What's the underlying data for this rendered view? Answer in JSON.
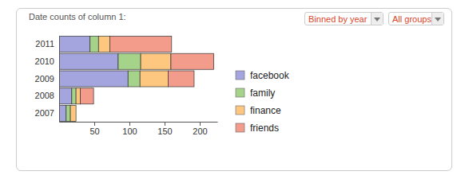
{
  "controls": [
    "Binned by year",
    "All groups"
  ],
  "chart_data": {
    "type": "bar",
    "title": "Date counts of column 1:",
    "orientation": "horizontal",
    "stacked": true,
    "categories": [
      "2011",
      "2010",
      "2009",
      "2008",
      "2007"
    ],
    "series": [
      {
        "name": "facebook",
        "color": "#a4a4de",
        "values": [
          44,
          84,
          98,
          18,
          10
        ]
      },
      {
        "name": "family",
        "color": "#a6d38a",
        "values": [
          12,
          32,
          17,
          6,
          6
        ]
      },
      {
        "name": "finance",
        "color": "#fdc77f",
        "values": [
          16,
          43,
          40,
          6,
          8
        ]
      },
      {
        "name": "friends",
        "color": "#f39c8c",
        "values": [
          88,
          61,
          37,
          19,
          0
        ]
      }
    ],
    "xlim": [
      0,
      225
    ],
    "xticks": [
      50,
      100,
      150,
      200
    ],
    "legend": "right"
  }
}
